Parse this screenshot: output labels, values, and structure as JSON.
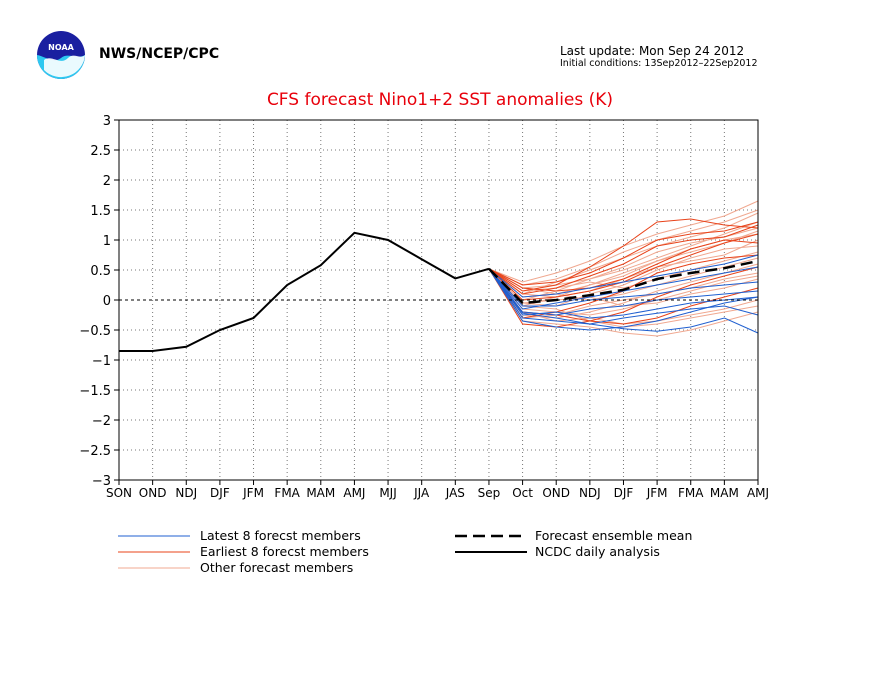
{
  "header": {
    "org": "NWS/NCEP/CPC",
    "last_update": "Last update: Mon Sep 24 2012",
    "initial_conditions": "Initial conditions: 13Sep2012–22Sep2012",
    "logo_icon": "noaa-logo-icon"
  },
  "colors": {
    "latest": "#1f5fd0",
    "earliest": "#e8431a",
    "other": "#f0a890",
    "analysis": "#000000",
    "title": "#e8000b"
  },
  "chart_data": {
    "type": "line",
    "title": "CFS forecast Nino1+2 SST anomalies (K)",
    "xlabel": "",
    "ylabel": "",
    "categories": [
      "SON",
      "OND",
      "NDJ",
      "DJF",
      "JFM",
      "FMA",
      "MAM",
      "AMJ",
      "MJJ",
      "JJA",
      "JAS",
      "Sep",
      "Oct",
      "OND",
      "NDJ",
      "DJF",
      "JFM",
      "FMA",
      "MAM",
      "AMJ"
    ],
    "ylim": [
      -3,
      3
    ],
    "yticks": [
      "3",
      "2.5",
      "2",
      "1.5",
      "1",
      "0.5",
      "0",
      "−0.5",
      "−1",
      "−1.5",
      "−2",
      "−2.5",
      "−3"
    ],
    "grid": true,
    "legend_position": "bottom",
    "analysis": {
      "name": "NCDC daily analysis",
      "values": [
        -0.85,
        -0.85,
        -0.78,
        -0.5,
        -0.3,
        0.25,
        0.58,
        1.12,
        1.0,
        0.68,
        0.36,
        0.52
      ]
    },
    "ensemble_mean": {
      "name": "Forecast ensemble mean",
      "values": [
        0.52,
        -0.05,
        0.0,
        0.08,
        0.17,
        0.35,
        0.45,
        0.53,
        0.65
      ]
    },
    "latest_members": {
      "name": "Latest 8 forecst members",
      "series": [
        [
          0.52,
          -0.22,
          -0.3,
          -0.4,
          -0.48,
          -0.52,
          -0.45,
          -0.3,
          -0.55
        ],
        [
          0.52,
          -0.3,
          -0.35,
          -0.4,
          -0.3,
          -0.22,
          -0.15,
          -0.1,
          -0.25
        ],
        [
          0.52,
          -0.1,
          -0.1,
          0.0,
          0.05,
          0.1,
          0.2,
          0.25,
          0.3
        ],
        [
          0.52,
          -0.2,
          -0.25,
          -0.15,
          -0.1,
          0.0,
          0.05,
          0.1,
          0.15
        ],
        [
          0.52,
          0.05,
          0.1,
          0.2,
          0.3,
          0.4,
          0.5,
          0.6,
          0.75
        ],
        [
          0.52,
          -0.35,
          -0.45,
          -0.5,
          -0.45,
          -0.35,
          -0.2,
          -0.05,
          0.05
        ],
        [
          0.52,
          -0.15,
          -0.05,
          0.05,
          0.15,
          0.25,
          0.35,
          0.45,
          0.55
        ],
        [
          0.52,
          -0.25,
          -0.2,
          -0.3,
          -0.25,
          -0.15,
          -0.05,
          0.0,
          0.05
        ]
      ]
    },
    "earliest_members": {
      "name": "Earliest 8 forecst members",
      "series": [
        [
          0.52,
          0.25,
          0.3,
          0.45,
          0.7,
          1.0,
          1.1,
          1.15,
          1.3
        ],
        [
          0.52,
          0.15,
          0.25,
          0.55,
          0.9,
          1.3,
          1.35,
          1.25,
          1.2
        ],
        [
          0.52,
          -0.3,
          -0.2,
          -0.05,
          0.15,
          0.45,
          0.6,
          0.7,
          0.75
        ],
        [
          0.52,
          0.1,
          0.2,
          0.4,
          0.6,
          0.9,
          1.0,
          1.05,
          1.25
        ],
        [
          0.52,
          -0.4,
          -0.45,
          -0.35,
          -0.2,
          0.05,
          0.25,
          0.4,
          0.55
        ],
        [
          0.52,
          0.0,
          0.05,
          0.15,
          0.3,
          0.55,
          0.75,
          0.95,
          1.1
        ],
        [
          0.52,
          -0.2,
          -0.25,
          -0.35,
          -0.4,
          -0.3,
          -0.1,
          0.05,
          0.2
        ],
        [
          0.52,
          0.2,
          0.15,
          0.2,
          0.35,
          0.6,
          0.85,
          1.0,
          0.95
        ]
      ]
    },
    "other_members": {
      "name": "Other forecast members",
      "series": [
        [
          0.52,
          0.3,
          0.45,
          0.65,
          0.9,
          1.1,
          1.25,
          1.4,
          1.65
        ],
        [
          0.52,
          0.1,
          0.3,
          0.5,
          0.7,
          0.9,
          1.05,
          1.2,
          1.45
        ],
        [
          0.52,
          -0.1,
          0.05,
          0.25,
          0.45,
          0.65,
          0.85,
          1.0,
          1.1
        ],
        [
          0.52,
          0.2,
          0.25,
          0.35,
          0.5,
          0.7,
          0.9,
          1.1,
          1.3
        ],
        [
          0.52,
          -0.25,
          -0.3,
          -0.2,
          -0.05,
          0.15,
          0.3,
          0.45,
          0.6
        ],
        [
          0.52,
          0.05,
          0.1,
          0.0,
          0.1,
          0.25,
          0.4,
          0.55,
          0.7
        ],
        [
          0.52,
          -0.35,
          -0.4,
          -0.45,
          -0.55,
          -0.6,
          -0.5,
          -0.35,
          -0.2
        ],
        [
          0.52,
          0.15,
          0.2,
          0.3,
          0.2,
          0.35,
          0.5,
          0.65,
          0.8
        ],
        [
          0.52,
          -0.05,
          -0.1,
          0.1,
          0.25,
          0.5,
          0.7,
          0.85,
          0.9
        ],
        [
          0.52,
          -0.15,
          -0.2,
          -0.25,
          -0.15,
          0.0,
          0.15,
          0.3,
          0.4
        ],
        [
          0.52,
          0.25,
          0.35,
          0.55,
          0.8,
          1.0,
          1.15,
          1.3,
          1.5
        ],
        [
          0.52,
          -0.2,
          -0.35,
          -0.3,
          -0.4,
          -0.35,
          -0.25,
          -0.15,
          0.0
        ],
        [
          0.52,
          0.0,
          0.15,
          0.35,
          0.55,
          0.8,
          0.95,
          1.05,
          1.2
        ],
        [
          0.52,
          -0.3,
          -0.25,
          -0.1,
          0.0,
          0.1,
          0.2,
          0.35,
          0.45
        ],
        [
          0.52,
          0.1,
          0.05,
          0.15,
          0.35,
          0.55,
          0.65,
          0.75,
          1.0
        ],
        [
          0.52,
          -0.1,
          -0.15,
          -0.35,
          -0.45,
          -0.4,
          -0.3,
          -0.2,
          -0.1
        ],
        [
          0.52,
          0.2,
          0.1,
          0.25,
          0.4,
          0.65,
          0.8,
          0.95,
          1.15
        ],
        [
          0.52,
          -0.05,
          0.0,
          0.05,
          -0.1,
          -0.05,
          0.1,
          0.2,
          0.35
        ]
      ]
    }
  }
}
